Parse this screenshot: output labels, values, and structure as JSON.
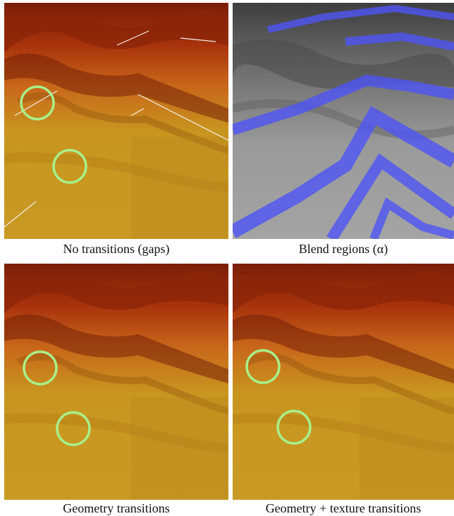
{
  "figure": {
    "panels": [
      {
        "id": "tl",
        "caption": "No transitions (gaps)",
        "style": "terrain-colored",
        "has_cracks": true,
        "has_circles": true
      },
      {
        "id": "tr",
        "caption": "Blend regions (α)",
        "style": "grayscale-with-blue-bands",
        "has_cracks": false,
        "has_circles": false
      },
      {
        "id": "bl",
        "caption": "Geometry transitions",
        "style": "terrain-colored",
        "has_cracks": false,
        "has_circles": true
      },
      {
        "id": "br",
        "caption": "Geometry + texture transitions",
        "style": "terrain-colored",
        "has_cracks": false,
        "has_circles": true
      }
    ],
    "colors": {
      "terrain_high": "#9a2a0a",
      "terrain_mid": "#d4761c",
      "terrain_low": "#c89a22",
      "highlight_circle": "#a8f08a",
      "blend_band": "#4d55f5",
      "gray_terrain": "#8c8c8c"
    }
  }
}
